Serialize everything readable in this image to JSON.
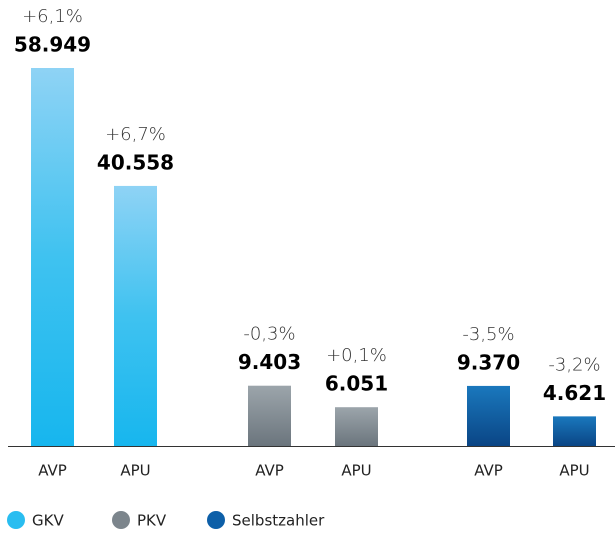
{
  "chart_data": {
    "type": "bar",
    "series": [
      {
        "name": "GKV",
        "color": "#29bdf0",
        "categories": [
          "AVP",
          "APU"
        ],
        "values": [
          58949,
          40558
        ],
        "value_labels": [
          "58.949",
          "40.558"
        ],
        "change_labels": [
          "+6,1%",
          "+6,7%"
        ]
      },
      {
        "name": "PKV",
        "color": "#7c858c",
        "categories": [
          "AVP",
          "APU"
        ],
        "values": [
          9403,
          6051
        ],
        "value_labels": [
          "9.403",
          "6.051"
        ],
        "change_labels": [
          "-0,3%",
          "+0,1%"
        ]
      },
      {
        "name": "Selbstzahler",
        "color": "#0d5fa8",
        "categories": [
          "AVP",
          "APU"
        ],
        "values": [
          9370,
          4621
        ],
        "value_labels": [
          "9.370",
          "4.621"
        ],
        "change_labels": [
          "-3,5%",
          "-3,2%"
        ]
      }
    ]
  }
}
